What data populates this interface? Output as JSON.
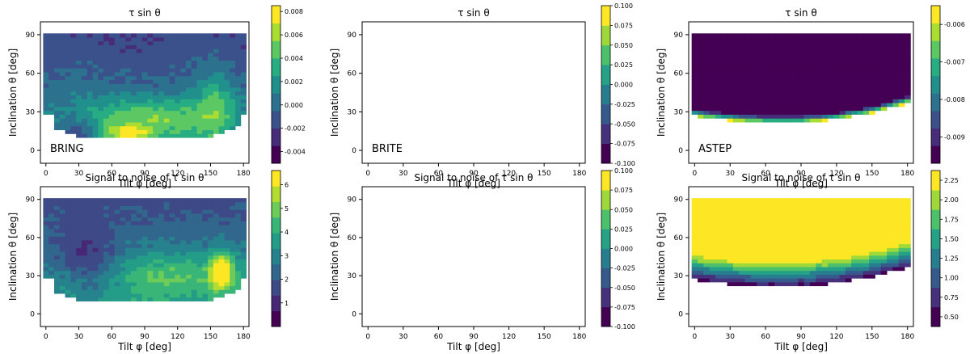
{
  "chart_data": [
    {
      "type": "heatmap",
      "title": "τ sin θ",
      "xlabel": "Tilt φ [deg]",
      "ylabel": "Inclination θ [deg]",
      "annotation": "BRING",
      "xlim": [
        -5,
        185
      ],
      "ylim": [
        -10,
        100
      ],
      "xticks": [
        0,
        30,
        60,
        90,
        120,
        150,
        180
      ],
      "yticks": [
        0,
        30,
        60,
        90
      ],
      "colorbar": {
        "ticks": [
          "-0.004",
          "-0.002",
          "0.000",
          "0.002",
          "0.004",
          "0.006",
          "0.008"
        ],
        "tick_values": [
          -0.004,
          -0.002,
          0.0,
          0.002,
          0.004,
          0.006,
          0.008
        ],
        "range": [
          -0.005,
          0.0085
        ],
        "levels": 9
      },
      "field": {
        "model": "bring_tau",
        "theta_top": 90,
        "theta_bottom": 10
      }
    },
    {
      "type": "heatmap",
      "title": "τ sin θ",
      "xlabel": "Tilt φ [deg]",
      "ylabel": "Inclination θ [deg]",
      "annotation": "BRITE",
      "xlim": [
        -5,
        185
      ],
      "ylim": [
        -10,
        100
      ],
      "xticks": [
        0,
        30,
        60,
        90,
        120,
        150,
        180
      ],
      "yticks": [
        0,
        30,
        60,
        90
      ],
      "colorbar": {
        "ticks": [
          "-0.100",
          "-0.075",
          "-0.050",
          "-0.025",
          "0.000",
          "0.025",
          "0.050",
          "0.075",
          "0.100"
        ],
        "tick_values": [
          -0.1,
          -0.075,
          -0.05,
          -0.025,
          0.0,
          0.025,
          0.05,
          0.075,
          0.1
        ],
        "range": [
          -0.1,
          0.1
        ],
        "levels": 8
      },
      "field": {
        "model": "empty"
      }
    },
    {
      "type": "heatmap",
      "title": "τ sin θ",
      "xlabel": "Tilt φ [deg]",
      "ylabel": "Inclination θ [deg]",
      "annotation": "ASTEP",
      "xlim": [
        -5,
        185
      ],
      "ylim": [
        -10,
        100
      ],
      "xticks": [
        0,
        30,
        60,
        90,
        120,
        150,
        180
      ],
      "yticks": [
        0,
        30,
        60,
        90
      ],
      "colorbar": {
        "ticks": [
          "-0.009",
          "-0.008",
          "-0.007",
          "-0.006"
        ],
        "tick_values": [
          -0.009,
          -0.008,
          -0.007,
          -0.006
        ],
        "range": [
          -0.0097,
          -0.0055
        ],
        "levels": 9
      },
      "field": {
        "model": "astep_tau",
        "theta_top": 90
      }
    },
    {
      "type": "heatmap",
      "title": "Signal to noise of τ sin θ",
      "xlabel": "Tilt φ [deg]",
      "ylabel": "Inclination θ [deg]",
      "annotation": "",
      "xlim": [
        -5,
        185
      ],
      "ylim": [
        -10,
        100
      ],
      "xticks": [
        0,
        30,
        60,
        90,
        120,
        150,
        180
      ],
      "yticks": [
        0,
        30,
        60,
        90
      ],
      "colorbar": {
        "ticks": [
          "1",
          "2",
          "3",
          "4",
          "5",
          "6"
        ],
        "tick_values": [
          1,
          2,
          3,
          4,
          5,
          6
        ],
        "range": [
          0.0,
          6.6
        ],
        "levels": 10
      },
      "field": {
        "model": "bring_snr",
        "theta_top": 90,
        "theta_bottom": 10
      }
    },
    {
      "type": "heatmap",
      "title": "Signal to noise of τ sin θ",
      "xlabel": "Tilt φ [deg]",
      "ylabel": "Inclination θ [deg]",
      "annotation": "",
      "xlim": [
        -5,
        185
      ],
      "ylim": [
        -10,
        100
      ],
      "xticks": [
        0,
        30,
        60,
        90,
        120,
        150,
        180
      ],
      "yticks": [
        0,
        30,
        60,
        90
      ],
      "colorbar": {
        "ticks": [
          "-0.100",
          "-0.075",
          "-0.050",
          "-0.025",
          "0.000",
          "0.025",
          "0.050",
          "0.075",
          "0.100"
        ],
        "tick_values": [
          -0.1,
          -0.075,
          -0.05,
          -0.025,
          0.0,
          0.025,
          0.05,
          0.075,
          0.1
        ],
        "range": [
          -0.1,
          0.1
        ],
        "levels": 8
      },
      "field": {
        "model": "empty"
      }
    },
    {
      "type": "heatmap",
      "title": "Signal to noise of τ sin θ",
      "xlabel": "Tilt φ [deg]",
      "ylabel": "Inclination θ [deg]",
      "annotation": "",
      "xlim": [
        -5,
        185
      ],
      "ylim": [
        -10,
        100
      ],
      "xticks": [
        0,
        30,
        60,
        90,
        120,
        150,
        180
      ],
      "yticks": [
        0,
        30,
        60,
        90
      ],
      "colorbar": {
        "ticks": [
          "0.50",
          "0.75",
          "1.00",
          "1.25",
          "1.50",
          "1.75",
          "2.00",
          "2.25"
        ],
        "tick_values": [
          0.5,
          0.75,
          1.0,
          1.25,
          1.5,
          1.75,
          2.0,
          2.25
        ],
        "range": [
          0.375,
          2.375
        ],
        "levels": 8
      },
      "field": {
        "model": "astep_snr",
        "theta_top": 90
      }
    }
  ],
  "colors": {
    "viridis": [
      "#440154",
      "#472c7a",
      "#3b518b",
      "#2c718e",
      "#21908d",
      "#27ad81",
      "#5cc863",
      "#aadc32",
      "#fde725"
    ]
  }
}
